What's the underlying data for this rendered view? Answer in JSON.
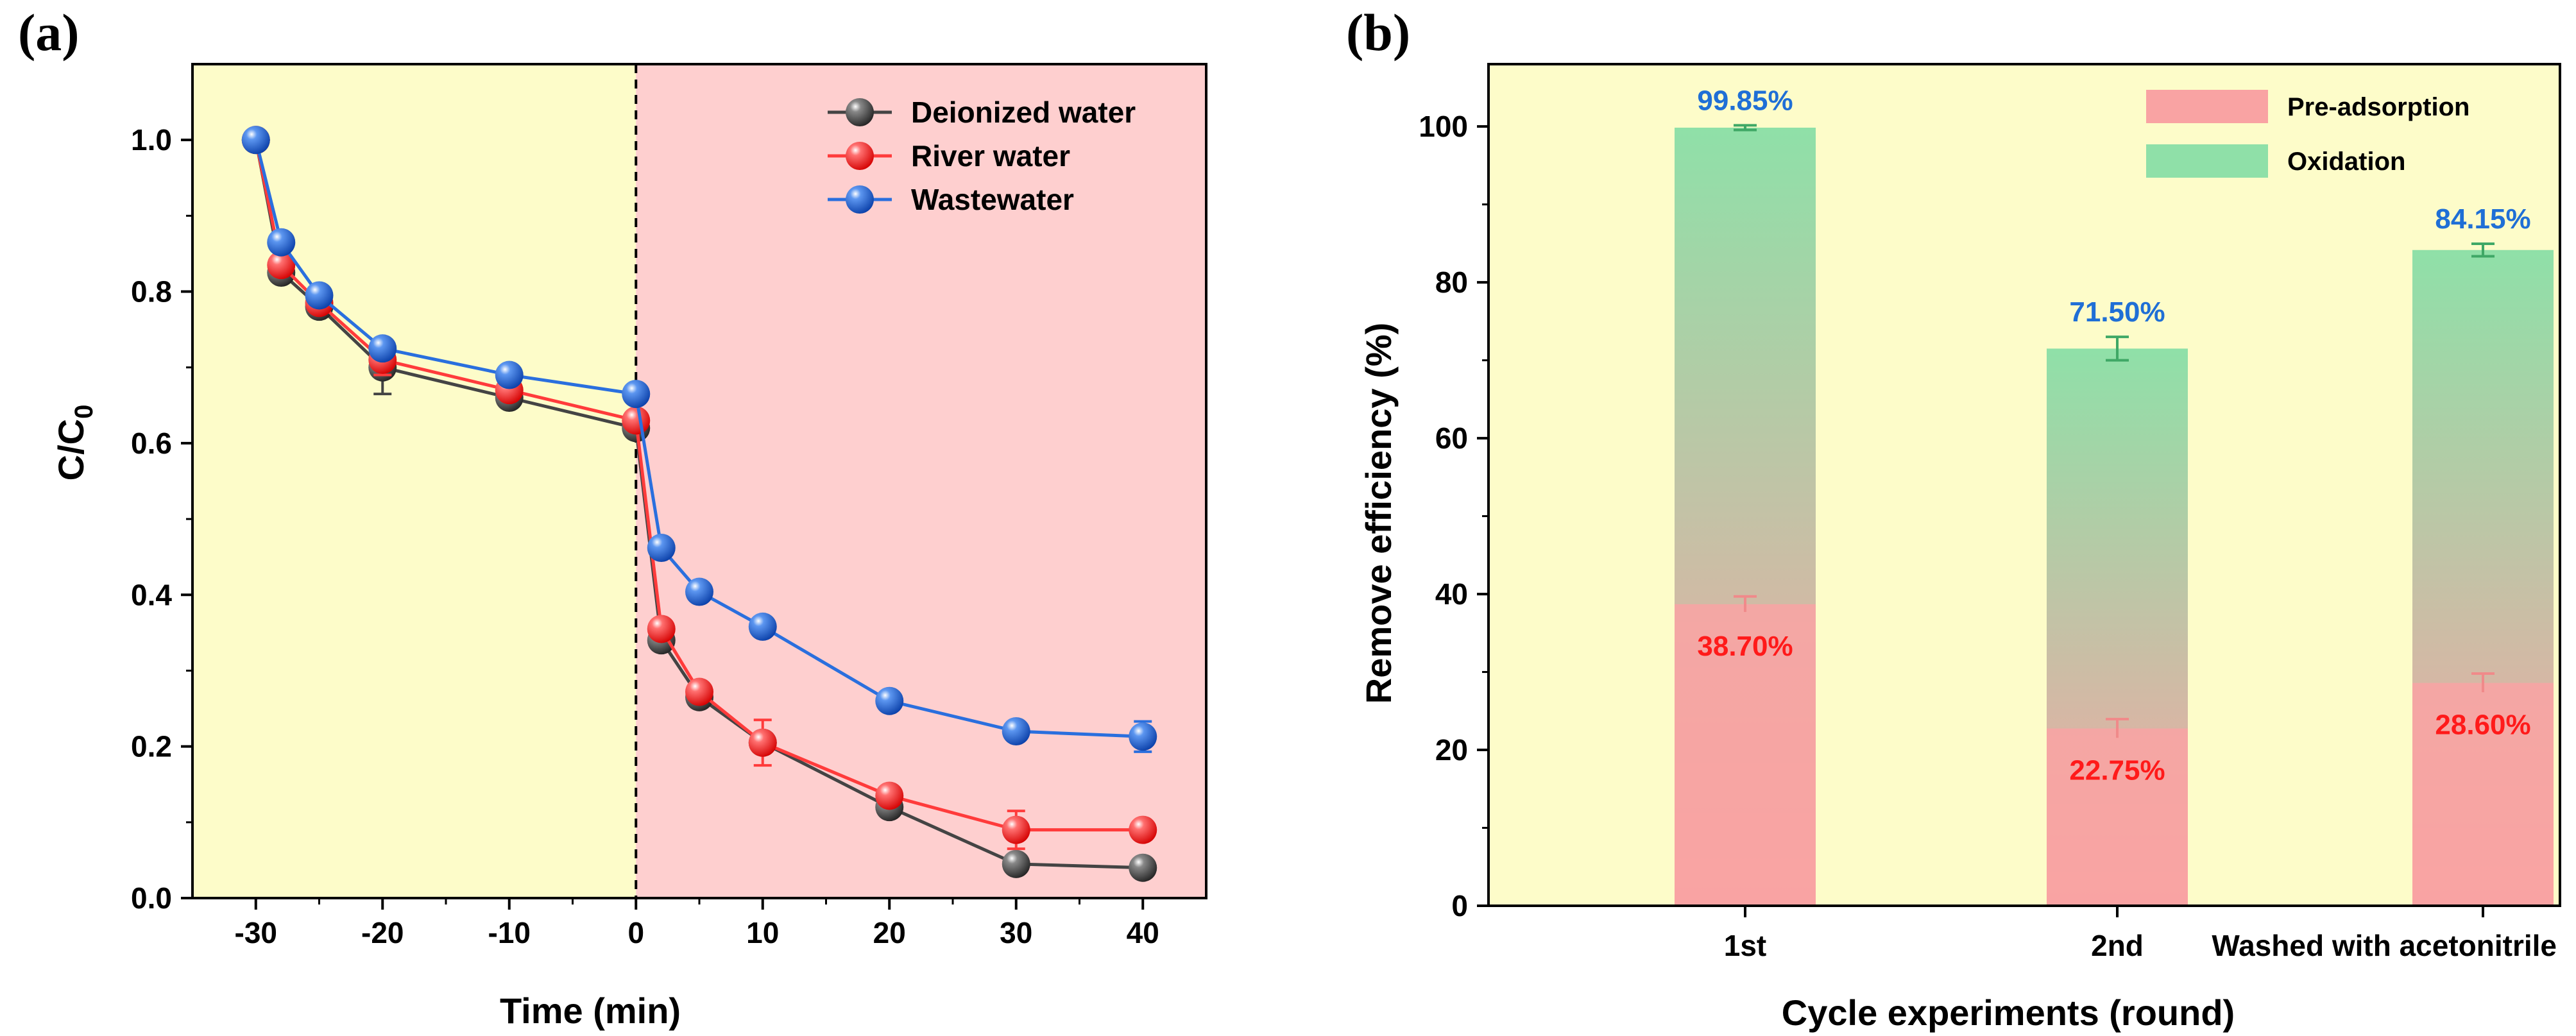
{
  "colors": {
    "adsorption_bg": "#fdfcc9",
    "oxidation_bg": "#fecfcf",
    "panel_b_bg": "#fdfcc9",
    "deionized": "#444444",
    "river": "#ff3b3b",
    "wastewater": "#2a6fde",
    "pre_adsorption": "#f9a3a3",
    "oxidation": "#8fe0a8",
    "label_blue": "#1f6fd6",
    "label_red": "#ff1a1a"
  },
  "chart_data": [
    {
      "panel": "(a)",
      "type": "line",
      "xlabel": "Time (min)",
      "ylabel": "C/C",
      "ylabel_sub": "0",
      "xlim": [
        -35,
        45
      ],
      "ylim": [
        0,
        1.1
      ],
      "xticks": [
        -30,
        -20,
        -10,
        0,
        10,
        20,
        30,
        40
      ],
      "yticks": [
        "0.0",
        "0.2",
        "0.4",
        "0.6",
        "0.8",
        "1.0"
      ],
      "divider_x": 0,
      "legend_position": "top-right",
      "series": [
        {
          "name": "Deionized water",
          "color": "#444444",
          "x": [
            -30,
            -28,
            -25,
            -20,
            -10,
            0,
            2,
            5,
            10,
            20,
            30,
            40
          ],
          "y": [
            1.0,
            0.825,
            0.78,
            0.7,
            0.66,
            0.62,
            0.34,
            0.265,
            0.205,
            0.12,
            0.045,
            0.04
          ],
          "err": [
            0,
            0.01,
            0.01,
            0.035,
            0.01,
            0.01,
            0.01,
            0.01,
            0.01,
            0.01,
            0.005,
            0.005
          ]
        },
        {
          "name": "River water",
          "color": "#ff3b3b",
          "x": [
            -30,
            -28,
            -25,
            -20,
            -10,
            0,
            2,
            5,
            10,
            20,
            30,
            40
          ],
          "y": [
            1.0,
            0.835,
            0.785,
            0.71,
            0.67,
            0.63,
            0.355,
            0.272,
            0.205,
            0.135,
            0.09,
            0.09
          ],
          "err": [
            0,
            0.01,
            0.01,
            0.02,
            0.01,
            0.01,
            0.01,
            0.01,
            0.03,
            0.01,
            0.025,
            0.01
          ]
        },
        {
          "name": "Wastewater",
          "color": "#2a6fde",
          "x": [
            -30,
            -28,
            -25,
            -20,
            -10,
            0,
            2,
            5,
            10,
            20,
            30,
            40
          ],
          "y": [
            1.0,
            0.865,
            0.795,
            0.725,
            0.69,
            0.665,
            0.462,
            0.404,
            0.358,
            0.26,
            0.22,
            0.213
          ],
          "err": [
            0,
            0.01,
            0.01,
            0.01,
            0.01,
            0.01,
            0.01,
            0.01,
            0.01,
            0.01,
            0.01,
            0.02
          ]
        }
      ]
    },
    {
      "panel": "(b)",
      "type": "bar",
      "stacked": true,
      "xlabel": "Cycle experiments (round)",
      "ylabel": "Remove efficiency (%)",
      "ylim": [
        0,
        108
      ],
      "yticks": [
        0,
        20,
        40,
        60,
        80,
        100
      ],
      "categories": [
        "1st",
        "2nd",
        "Washed with acetonitrile"
      ],
      "legend_position": "top-right",
      "series": [
        {
          "name": "Pre-adsorption",
          "color": "#f9a3a3",
          "values": [
            38.7,
            22.75,
            28.6
          ],
          "err": [
            1.0,
            1.2,
            1.2
          ]
        },
        {
          "name": "Oxidation",
          "color": "#8fe0a8",
          "values": [
            61.15,
            48.75,
            55.55
          ],
          "err": [
            0.3,
            1.5,
            0.8
          ]
        }
      ],
      "totals": [
        99.85,
        71.5,
        84.15
      ],
      "total_labels": [
        "99.85%",
        "71.50%",
        "84.15%"
      ],
      "pre_labels": [
        "38.70%",
        "22.75%",
        "28.60%"
      ]
    }
  ]
}
